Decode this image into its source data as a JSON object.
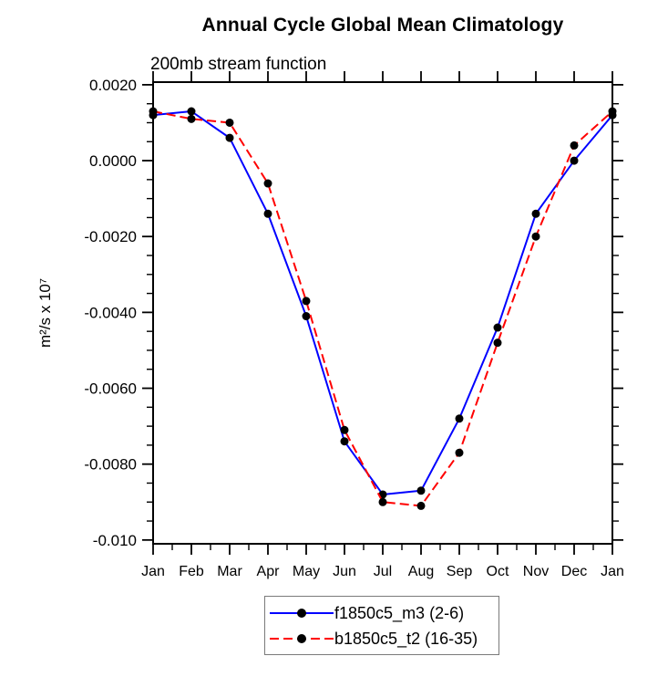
{
  "chart_data": {
    "type": "line",
    "title": "Annual Cycle Global Mean Climatology",
    "subtitle": "200mb stream function",
    "ylabel": "m²/s x 10⁷",
    "xlabel": "",
    "categories": [
      "Jan",
      "Feb",
      "Mar",
      "Apr",
      "May",
      "Jun",
      "Jul",
      "Aug",
      "Sep",
      "Oct",
      "Nov",
      "Dec",
      "Jan"
    ],
    "series": [
      {
        "name": "f1850c5_m3 (2-6)",
        "color": "#0000ff",
        "line_style": "solid",
        "marker": "filled-circle",
        "marker_color": "#000000",
        "values": [
          0.0012,
          0.0013,
          0.0006,
          -0.0014,
          -0.0041,
          -0.0074,
          -0.0088,
          -0.0087,
          -0.0068,
          -0.0044,
          -0.0014,
          0.0,
          0.0012
        ]
      },
      {
        "name": "b1850c5_t2 (16-35)",
        "color": "#ff0000",
        "line_style": "dashed",
        "marker": "filled-circle",
        "marker_color": "#000000",
        "values": [
          0.0013,
          0.0011,
          0.001,
          -0.0006,
          -0.0037,
          -0.0071,
          -0.009,
          -0.0091,
          -0.0077,
          -0.0048,
          -0.002,
          0.0004,
          0.0013
        ]
      }
    ],
    "yticks": {
      "major_values": [
        0.002,
        0.0,
        -0.002,
        -0.004,
        -0.006,
        -0.008,
        -0.01
      ],
      "major_labels": [
        "0.0020",
        "0.0000",
        "-0.0020",
        "-0.0040",
        "-0.0060",
        "-0.0080",
        "-0.010"
      ],
      "minor_step": 0.0005
    },
    "ylim": [
      -0.0101,
      0.00207
    ],
    "grid": false,
    "legend_position": "bottom-center",
    "axis_color": "#000000"
  }
}
